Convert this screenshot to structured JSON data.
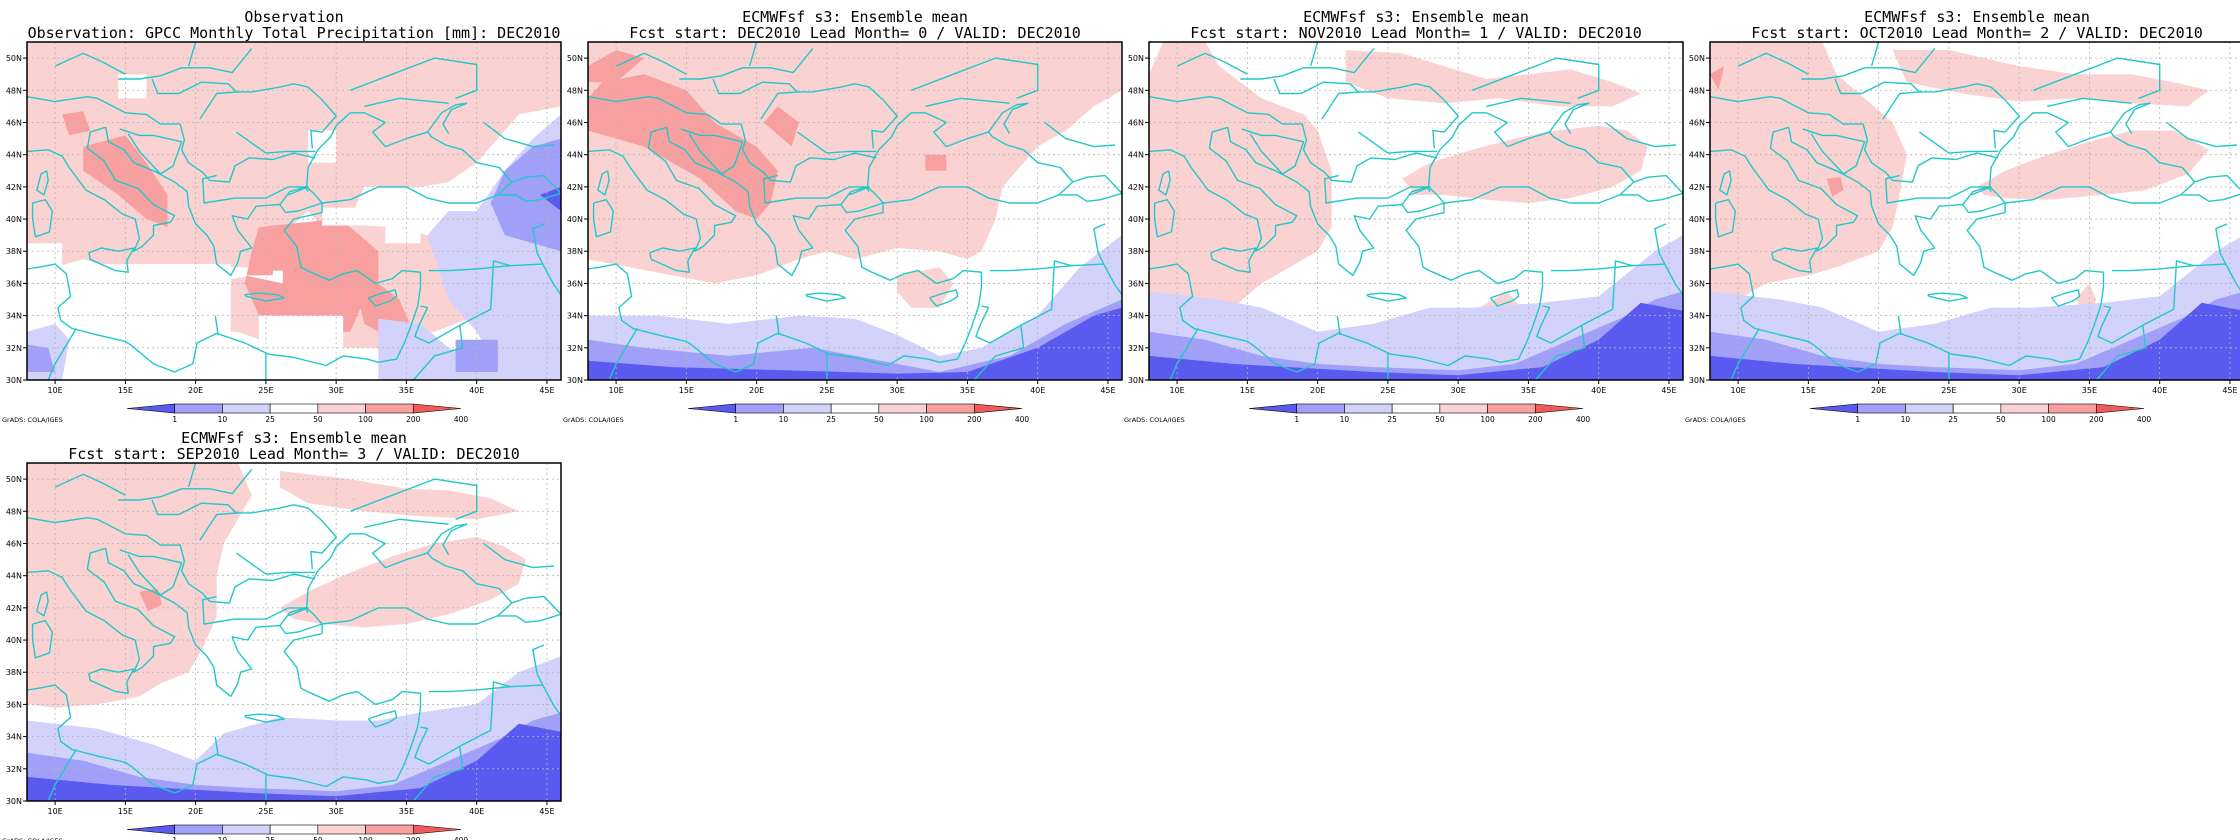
{
  "panels": [
    {
      "id": "observation",
      "title_line1": "Observation",
      "title_line2": "Observation: GPCC Monthly Total Precipitation [mm]: DEC2010"
    },
    {
      "id": "lead0",
      "title_line1": "ECMWFsf s3: Ensemble mean",
      "title_line2": "Fcst start: DEC2010  Lead Month= 0 / VALID: DEC2010"
    },
    {
      "id": "lead1",
      "title_line1": "ECMWFsf s3: Ensemble mean",
      "title_line2": "Fcst start: NOV2010  Lead Month= 1 / VALID: DEC2010"
    },
    {
      "id": "lead2",
      "title_line1": "ECMWFsf s3: Ensemble mean",
      "title_line2": "Fcst start: OCT2010  Lead Month= 2 / VALID: DEC2010"
    },
    {
      "id": "lead3",
      "title_line1": "ECMWFsf s3: Ensemble mean",
      "title_line2": "Fcst start: SEP2010  Lead Month= 3 / VALID: DEC2010"
    }
  ],
  "map": {
    "lon_range": [
      8,
      46
    ],
    "lat_range": [
      30,
      51
    ],
    "lon_ticks": [
      10,
      15,
      20,
      25,
      30,
      35,
      40,
      45
    ],
    "lon_tick_labels": [
      "10E",
      "15E",
      "20E",
      "25E",
      "30E",
      "35E",
      "40E",
      "45E"
    ],
    "lat_ticks": [
      30,
      32,
      34,
      36,
      38,
      40,
      42,
      44,
      46,
      48,
      50
    ],
    "lat_tick_labels": [
      "30N",
      "32N",
      "34N",
      "36N",
      "38N",
      "40N",
      "42N",
      "44N",
      "46N",
      "48N",
      "50N"
    ],
    "grid": true,
    "coastline_color": "#22c8c8"
  },
  "colorbar": {
    "labels": [
      "1",
      "10",
      "25",
      "50",
      "100",
      "200",
      "400"
    ],
    "colors": [
      "#5a5af0",
      "#a0a0f8",
      "#d2d2fa",
      "#ffffff",
      "#fad2d2",
      "#f8a0a0",
      "#f05a5a"
    ]
  },
  "credit": "GrADS: COLA/IGES"
}
